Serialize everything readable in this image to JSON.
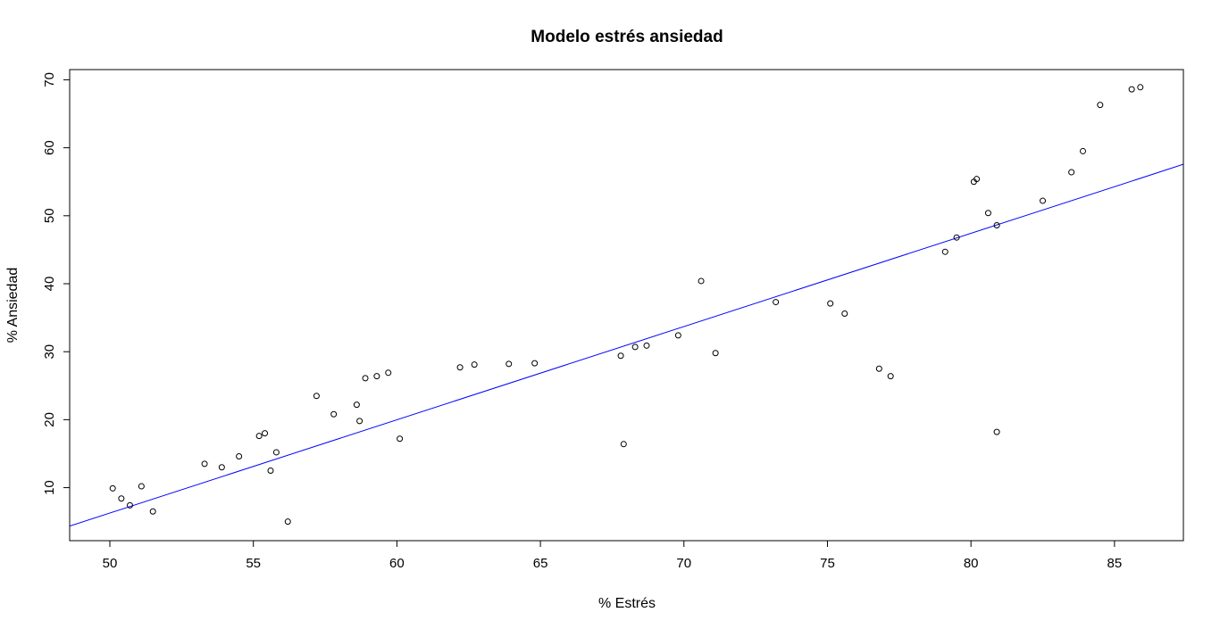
{
  "chart_data": {
    "type": "scatter",
    "title": "Modelo estrés ansiedad",
    "xlabel": "% Estrés",
    "ylabel": "% Ansiedad",
    "xlim": [
      48.6,
      87.4
    ],
    "ylim": [
      2.2,
      71.5
    ],
    "xticks": [
      50,
      55,
      60,
      65,
      70,
      75,
      80,
      85
    ],
    "yticks": [
      10,
      20,
      30,
      40,
      50,
      60,
      70
    ],
    "grid": false,
    "point_color": "#000000",
    "series": [
      {
        "x": [
          50.1,
          50.4,
          50.7,
          51.1,
          51.5,
          53.3,
          53.9,
          54.5,
          55.2,
          55.4,
          55.6,
          55.8,
          56.2,
          57.2,
          57.8,
          58.6,
          58.7,
          58.9,
          59.3,
          59.7,
          60.1,
          62.2,
          62.7,
          63.9,
          64.8,
          67.8,
          67.9,
          68.3,
          68.7,
          69.8,
          70.6,
          71.1,
          73.2,
          75.1,
          75.6,
          76.8,
          77.2,
          79.1,
          79.5,
          80.1,
          80.2,
          80.6,
          80.9,
          80.9,
          82.5,
          83.5,
          83.9,
          84.5,
          85.6,
          85.9
        ],
        "y": [
          9.9,
          8.4,
          7.4,
          10.2,
          6.5,
          13.5,
          13.0,
          14.6,
          17.6,
          18.0,
          12.5,
          15.2,
          5.0,
          23.5,
          20.8,
          22.2,
          19.8,
          26.1,
          26.4,
          26.9,
          17.2,
          27.7,
          28.1,
          28.2,
          28.3,
          29.4,
          16.4,
          30.7,
          30.9,
          32.4,
          40.4,
          29.8,
          37.3,
          37.1,
          35.6,
          27.5,
          26.4,
          44.7,
          46.8,
          55.0,
          55.4,
          50.4,
          48.6,
          18.2,
          52.2,
          56.4,
          59.5,
          66.3,
          68.6,
          68.9
        ]
      }
    ],
    "fit_line": {
      "intercept": -62.32,
      "slope": 1.3717,
      "color": "#0000ff"
    }
  }
}
